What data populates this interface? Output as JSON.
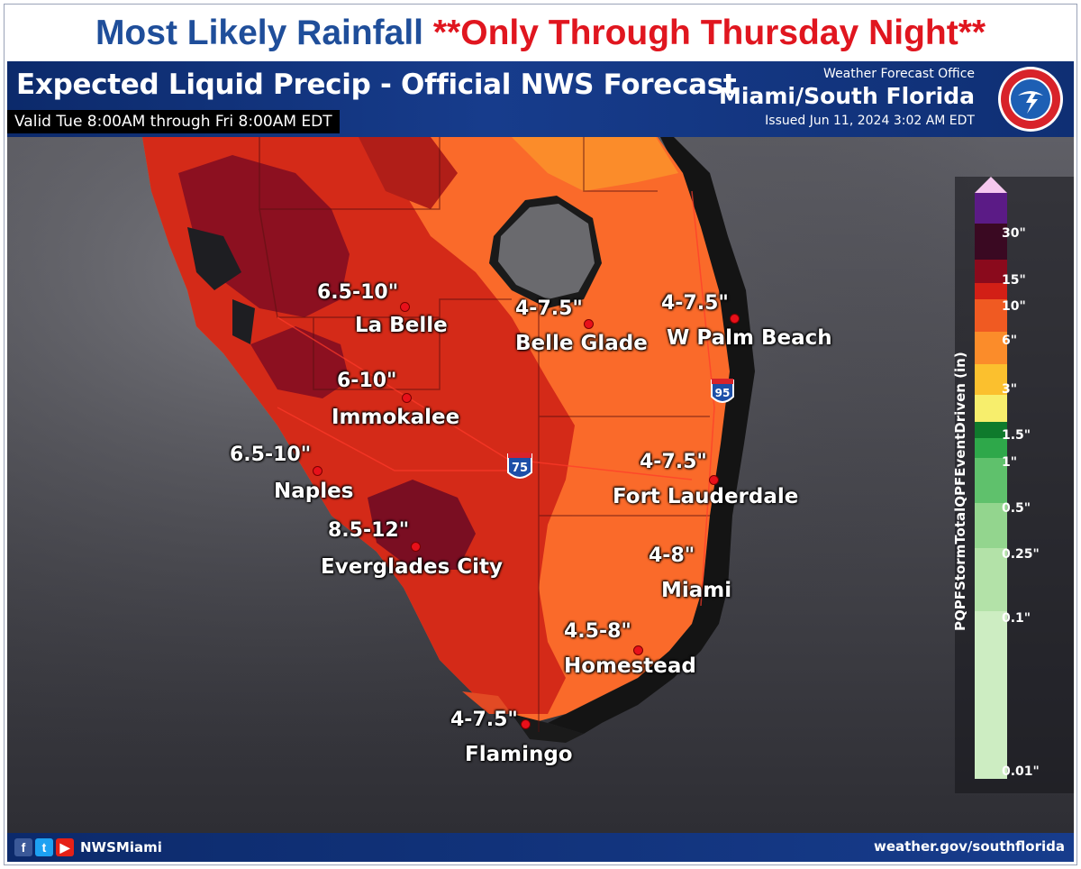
{
  "title": {
    "main": "Most Likely Rainfall",
    "note": "**Only Through Thursday Night**"
  },
  "header": {
    "title": "Expected Liquid Precip - Official NWS Forecast",
    "valid": "Valid Tue 8:00AM through Fri 8:00AM EDT",
    "office_label": "Weather Forecast Office",
    "office_name": "Miami/South Florida",
    "issued": "Issued Jun 11, 2024 3:02 AM EDT"
  },
  "map": {
    "highways": [
      "75",
      "95"
    ],
    "locations": [
      {
        "name": "La Belle",
        "amount": "6.5-10\""
      },
      {
        "name": "Belle Glade",
        "amount": "4-7.5\""
      },
      {
        "name": "W Palm Beach",
        "amount": "4-7.5\""
      },
      {
        "name": "Immokalee",
        "amount": "6-10\""
      },
      {
        "name": "Naples",
        "amount": "6.5-10\""
      },
      {
        "name": "Fort Lauderdale",
        "amount": "4-7.5\""
      },
      {
        "name": "Everglades City",
        "amount": "8.5-12\""
      },
      {
        "name": "Miami",
        "amount": "4-8\""
      },
      {
        "name": "Homestead",
        "amount": "4.5-8\""
      },
      {
        "name": "Flamingo",
        "amount": "4-7.5\""
      }
    ]
  },
  "legend": {
    "title": "PQPFStormTotalQPFEventDriven (in)",
    "ticks": [
      "30\"",
      "15\"",
      "10\"",
      "6\"",
      "3\"",
      "1.5\"",
      "1\"",
      "0.5\"",
      "0.25\"",
      "0.1\"",
      "0.01\""
    ],
    "colors": [
      "#f6c8ef",
      "#5b1b86",
      "#3a0922",
      "#8a0a1c",
      "#d21f16",
      "#f05a22",
      "#fb8c2a",
      "#fbc02e",
      "#f7ee6c",
      "#0f7a2c",
      "#2ea84a",
      "#5fc16c",
      "#93d58e",
      "#b3e2a8",
      "#cdedc2"
    ]
  },
  "footer": {
    "handle": "NWSMiami",
    "url": "weather.gov/southflorida",
    "social_icons": [
      "facebook-icon",
      "twitter-icon",
      "youtube-icon"
    ]
  }
}
